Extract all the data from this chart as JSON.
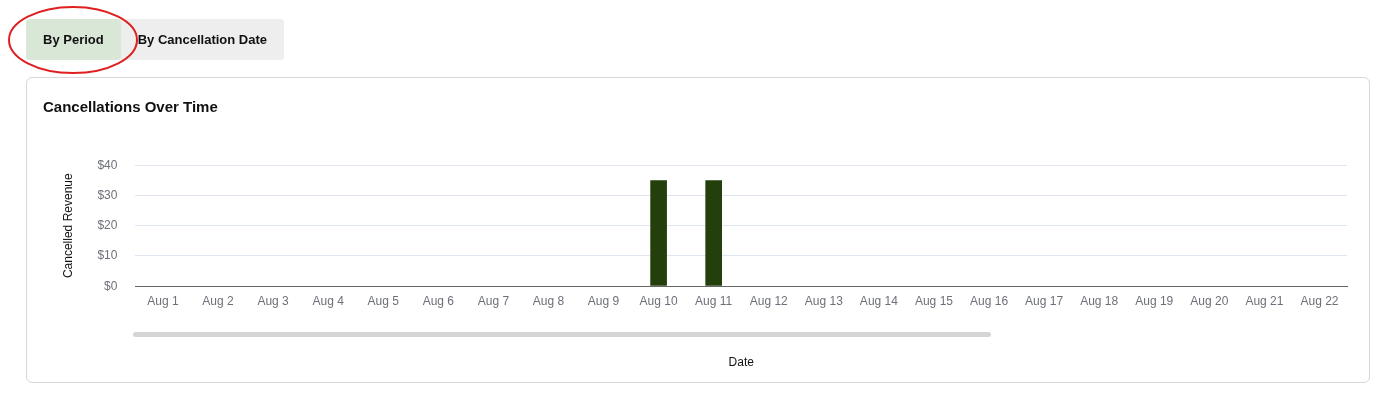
{
  "chart_data": {
    "type": "bar",
    "title": "Cancellations Over Time",
    "xlabel": "Date",
    "ylabel": "Cancelled Revenue",
    "categories": [
      "Aug 1",
      "Aug 2",
      "Aug 3",
      "Aug 4",
      "Aug 5",
      "Aug 6",
      "Aug 7",
      "Aug 8",
      "Aug 9",
      "Aug 10",
      "Aug 11",
      "Aug 12",
      "Aug 13",
      "Aug 14",
      "Aug 15",
      "Aug 16",
      "Aug 17",
      "Aug 18",
      "Aug 19",
      "Aug 20",
      "Aug 21",
      "Aug 22"
    ],
    "values": [
      0,
      0,
      0,
      0,
      0,
      0,
      0,
      0,
      0,
      35,
      35,
      0,
      0,
      0,
      0,
      0,
      0,
      0,
      0,
      0,
      0,
      0
    ],
    "color": "#233f0c",
    "ylim": [
      0,
      40
    ],
    "yticks": [
      {
        "value": 0,
        "label": "$0"
      },
      {
        "value": 10,
        "label": "$10"
      },
      {
        "value": 20,
        "label": "$20"
      },
      {
        "value": 30,
        "label": "$30"
      },
      {
        "value": 40,
        "label": "$40"
      }
    ],
    "grid": "y",
    "legend": false,
    "annotations": [
      "By Period",
      "By Cancellation Date"
    ]
  }
}
